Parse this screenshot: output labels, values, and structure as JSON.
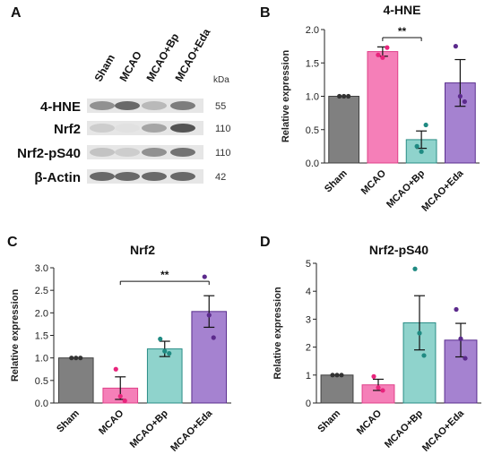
{
  "panels": {
    "A": "A",
    "B": "B",
    "C": "C",
    "D": "D"
  },
  "blot": {
    "lanes": [
      "Sham",
      "MCAO",
      "MCAO+Bp",
      "MCAO+Eda"
    ],
    "kda_header": "kDa",
    "rows": [
      {
        "label": "4-HNE",
        "kda": "55"
      },
      {
        "label": "Nrf2",
        "kda": "110"
      },
      {
        "label": "Nrf2-pS40",
        "kda": "110"
      },
      {
        "label": "β-Actin",
        "kda": "42"
      }
    ]
  },
  "colors": {
    "Sham": "#808080",
    "MCAO": "#f57fb8",
    "MCAO+Bp": "#8fd3cc",
    "MCAO+Eda": "#a582d0",
    "Sham_edge": "#404040",
    "MCAO_edge": "#e0418a",
    "MCAO+Bp_edge": "#2a8d86",
    "MCAO+Eda_edge": "#5a2e8e",
    "Sham_dot": "#333333",
    "MCAO_dot": "#e8247c",
    "MCAO+Bp_dot": "#1f8a82",
    "MCAO+Eda_dot": "#5b2a8c"
  },
  "chart_data": [
    {
      "id": "B",
      "type": "bar",
      "title": "4-HNE",
      "ylabel": "Relative expression",
      "categories": [
        "Sham",
        "MCAO",
        "MCAO+Bp",
        "MCAO+Eda"
      ],
      "values": [
        1.0,
        1.67,
        0.35,
        1.2
      ],
      "errors": [
        0.0,
        0.07,
        0.13,
        0.35
      ],
      "points": [
        [
          1.0,
          1.0,
          1.0
        ],
        [
          1.62,
          1.58,
          1.73
        ],
        [
          0.25,
          0.17,
          0.57
        ],
        [
          1.75,
          1.0,
          0.92
        ]
      ],
      "ylim": [
        0,
        2.0
      ],
      "yticks": [
        0.0,
        0.5,
        1.0,
        1.5,
        2.0
      ],
      "ytick_labels": [
        "0.0",
        "0.5",
        "1.0",
        "1.5",
        "2.0"
      ],
      "significance": [
        {
          "from": "MCAO",
          "to": "MCAO+Bp",
          "label": "**",
          "y": 1.88
        }
      ]
    },
    {
      "id": "C",
      "type": "bar",
      "title": "Nrf2",
      "ylabel": "Relative expression",
      "categories": [
        "Sham",
        "MCAO",
        "MCAO+Bp",
        "MCAO+Eda"
      ],
      "values": [
        1.0,
        0.33,
        1.2,
        2.03
      ],
      "errors": [
        0.0,
        0.25,
        0.17,
        0.35
      ],
      "points": [
        [
          1.0,
          1.0,
          1.0
        ],
        [
          0.75,
          0.15,
          0.05
        ],
        [
          1.42,
          1.15,
          1.1
        ],
        [
          2.8,
          1.95,
          1.45
        ]
      ],
      "ylim": [
        0,
        3.0
      ],
      "yticks": [
        0.0,
        0.5,
        1.0,
        1.5,
        2.0,
        2.5,
        3.0
      ],
      "ytick_labels": [
        "0.0",
        "0.5",
        "1.0",
        "1.5",
        "2.0",
        "2.5",
        "3.0"
      ],
      "significance": [
        {
          "from": "MCAO",
          "to": "MCAO+Eda",
          "label": "**",
          "y": 2.7
        }
      ]
    },
    {
      "id": "D",
      "type": "bar",
      "title": "Nrf2-pS40",
      "ylabel": "Relative expression",
      "categories": [
        "Sham",
        "MCAO",
        "MCAO+Bp",
        "MCAO+Eda"
      ],
      "values": [
        1.0,
        0.65,
        2.87,
        2.25
      ],
      "errors": [
        0.0,
        0.2,
        0.97,
        0.6
      ],
      "points": [
        [
          1.0,
          1.0,
          1.0
        ],
        [
          0.95,
          0.55,
          0.45
        ],
        [
          4.8,
          2.5,
          1.7
        ],
        [
          3.35,
          2.3,
          1.6
        ]
      ],
      "ylim": [
        0,
        5
      ],
      "yticks": [
        0,
        1,
        2,
        3,
        4,
        5
      ],
      "ytick_labels": [
        "0",
        "1",
        "2",
        "3",
        "4",
        "5"
      ],
      "significance": []
    }
  ]
}
